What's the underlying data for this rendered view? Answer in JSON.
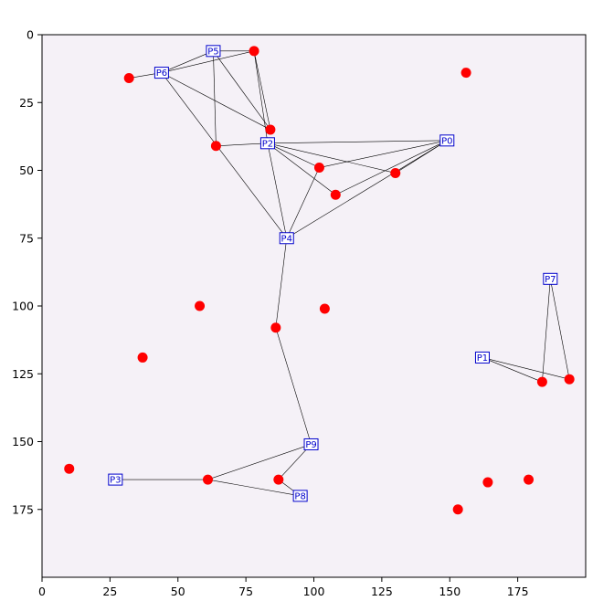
{
  "chart_data": {
    "type": "scatter",
    "title": "",
    "xlabel": "",
    "ylabel": "",
    "xlim": [
      0,
      200
    ],
    "ylim": [
      200,
      0
    ],
    "y_inverted": true,
    "grid": false,
    "x_ticks": [
      0,
      25,
      50,
      75,
      100,
      125,
      150,
      175
    ],
    "y_ticks": [
      0,
      25,
      50,
      75,
      100,
      125,
      150,
      175
    ],
    "colors": {
      "background": "#f5f1f7",
      "point": "#ff0000",
      "node_border": "#0000cc",
      "node_text": "#0000cc",
      "edge": "#000000"
    },
    "labeled_nodes": [
      {
        "label": "P0",
        "x": 149,
        "y": 39
      },
      {
        "label": "P1",
        "x": 162,
        "y": 119
      },
      {
        "label": "P2",
        "x": 83,
        "y": 40
      },
      {
        "label": "P3",
        "x": 27,
        "y": 164
      },
      {
        "label": "P4",
        "x": 90,
        "y": 75
      },
      {
        "label": "P5",
        "x": 63,
        "y": 6
      },
      {
        "label": "P6",
        "x": 44,
        "y": 14
      },
      {
        "label": "P7",
        "x": 187,
        "y": 90
      },
      {
        "label": "P8",
        "x": 95,
        "y": 170
      },
      {
        "label": "P9",
        "x": 99,
        "y": 151
      }
    ],
    "points": [
      {
        "id": "a",
        "x": 78,
        "y": 6
      },
      {
        "id": "b",
        "x": 32,
        "y": 16
      },
      {
        "id": "c",
        "x": 156,
        "y": 14
      },
      {
        "id": "d",
        "x": 84,
        "y": 35
      },
      {
        "id": "e",
        "x": 64,
        "y": 41
      },
      {
        "id": "f",
        "x": 102,
        "y": 49
      },
      {
        "id": "g",
        "x": 130,
        "y": 51
      },
      {
        "id": "h",
        "x": 108,
        "y": 59
      },
      {
        "id": "i",
        "x": 58,
        "y": 100
      },
      {
        "id": "j",
        "x": 104,
        "y": 101
      },
      {
        "id": "k",
        "x": 86,
        "y": 108
      },
      {
        "id": "l",
        "x": 37,
        "y": 119
      },
      {
        "id": "m",
        "x": 184,
        "y": 128
      },
      {
        "id": "n",
        "x": 194,
        "y": 127
      },
      {
        "id": "o",
        "x": 10,
        "y": 160
      },
      {
        "id": "p",
        "x": 61,
        "y": 164
      },
      {
        "id": "q",
        "x": 87,
        "y": 164
      },
      {
        "id": "r",
        "x": 179,
        "y": 164
      },
      {
        "id": "s",
        "x": 164,
        "y": 165
      },
      {
        "id": "t",
        "x": 153,
        "y": 175
      }
    ],
    "edges": [
      [
        "P5",
        "a"
      ],
      [
        "P5",
        "P6"
      ],
      [
        "P5",
        "e"
      ],
      [
        "P5",
        "d"
      ],
      [
        "P6",
        "a"
      ],
      [
        "P6",
        "b"
      ],
      [
        "P6",
        "d"
      ],
      [
        "P6",
        "P4"
      ],
      [
        "a",
        "d"
      ],
      [
        "a",
        "P2"
      ],
      [
        "P2",
        "e"
      ],
      [
        "P2",
        "P4"
      ],
      [
        "P2",
        "P0"
      ],
      [
        "P2",
        "f"
      ],
      [
        "P2",
        "g"
      ],
      [
        "P2",
        "h"
      ],
      [
        "P0",
        "f"
      ],
      [
        "P0",
        "g"
      ],
      [
        "P0",
        "P4"
      ],
      [
        "P0",
        "h"
      ],
      [
        "P4",
        "f"
      ],
      [
        "P4",
        "k"
      ],
      [
        "k",
        "P9"
      ],
      [
        "P9",
        "p"
      ],
      [
        "P9",
        "q"
      ],
      [
        "P3",
        "p"
      ],
      [
        "p",
        "P8"
      ],
      [
        "q",
        "P8"
      ],
      [
        "P7",
        "m"
      ],
      [
        "P7",
        "n"
      ],
      [
        "P1",
        "m"
      ],
      [
        "P1",
        "n"
      ]
    ]
  }
}
